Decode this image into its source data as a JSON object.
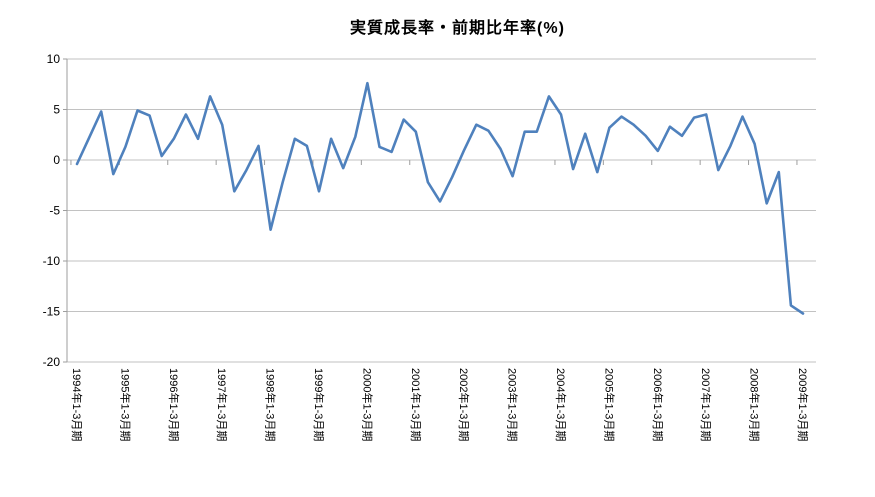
{
  "chart_data": {
    "type": "line",
    "title": "実質成長率・前期比年率(%)",
    "x_range": {
      "start": "1994Q1",
      "end": "2009Q1",
      "freq": "quarterly",
      "count": 61
    },
    "x_tick_labels": [
      "1994年1-3月期",
      "1995年1-3月期",
      "1996年1-3月期",
      "1997年1-3月期",
      "1998年1-3月期",
      "1999年1-3月期",
      "2000年1-3月期",
      "2001年1-3月期",
      "2002年1-3月期",
      "2003年1-3月期",
      "2004年1-3月期",
      "2005年1-3月期",
      "2006年1-3月期",
      "2007年1-3月期",
      "2008年1-3月期",
      "2009年1-3月期"
    ],
    "x_tick_every": 4,
    "series": [
      {
        "name": "実質成長率・前期比年率",
        "values": [
          -0.4,
          2.2,
          4.8,
          -1.4,
          1.3,
          4.9,
          4.4,
          0.4,
          2.1,
          4.5,
          2.1,
          6.3,
          3.5,
          -3.1,
          -1.0,
          1.4,
          -6.9,
          -2.2,
          2.1,
          1.4,
          -3.1,
          2.1,
          -0.8,
          2.3,
          7.6,
          1.3,
          0.8,
          4.0,
          2.8,
          -2.2,
          -4.1,
          -1.7,
          1.0,
          3.5,
          2.9,
          1.1,
          -1.6,
          2.8,
          2.8,
          6.3,
          4.5,
          -0.9,
          2.6,
          -1.2,
          3.2,
          4.3,
          3.5,
          2.4,
          0.9,
          3.3,
          2.4,
          4.2,
          4.5,
          -1.0,
          1.4,
          4.3,
          1.6,
          -4.3,
          -1.2,
          -14.4,
          -15.2
        ]
      }
    ],
    "ylim": [
      -20,
      10
    ],
    "y_ticks": [
      "10",
      "5",
      "0",
      "-5",
      "-10",
      "-15",
      "-20"
    ],
    "grid": "horizontal",
    "legend": "none",
    "colors": {
      "line": "#4F81BD",
      "grid": "#C2C2C2",
      "axis": "#9E9E9E",
      "text": "#000000",
      "background": "#FFFFFF"
    }
  }
}
